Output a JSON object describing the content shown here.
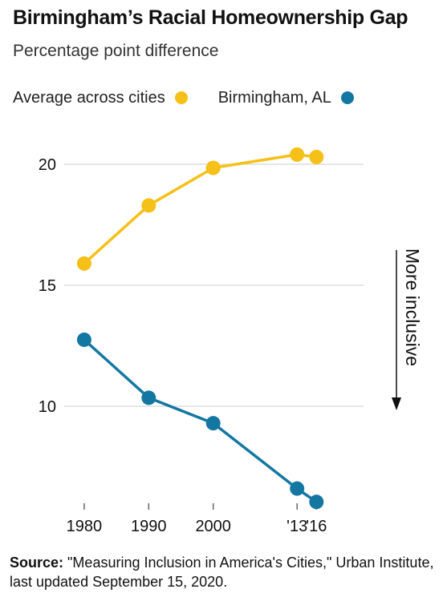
{
  "title": "Birmingham’s Racial Homeownership Gap",
  "subtitle": "Percentage point difference",
  "annotation": "More inclusive",
  "source": {
    "label": "Source:",
    "text": "\"Measuring Inclusion in America's Cities,\" Urban Institute, last updated September 15, 2020."
  },
  "chart_data": {
    "type": "line",
    "title": "Birmingham’s Racial Homeownership Gap",
    "subtitle": "Percentage point difference",
    "x": [
      1980,
      1990,
      2000,
      2013,
      2016
    ],
    "x_tick_labels": [
      "1980",
      "1990",
      "2000",
      "'13",
      "'16"
    ],
    "y_ticks": [
      10,
      15,
      20
    ],
    "ylim": [
      6.5,
      21
    ],
    "grid": true,
    "legend_position": "top-left",
    "series": [
      {
        "name": "Average across cities",
        "color": "#f5c018",
        "values": [
          15.9,
          18.3,
          19.85,
          20.4,
          20.3
        ]
      },
      {
        "name": "Birmingham, AL",
        "color": "#1477a2",
        "values": [
          12.75,
          10.35,
          9.3,
          6.6,
          6.05
        ]
      }
    ]
  }
}
